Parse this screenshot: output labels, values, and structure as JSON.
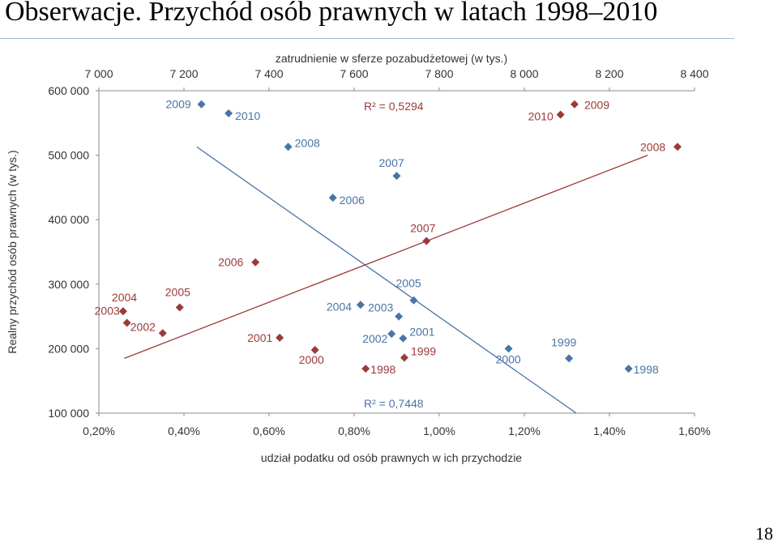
{
  "slide": {
    "title": "Obserwacje. Przychód osób prawnych w latach 1998–2010",
    "page_number": "18"
  },
  "chart_data": {
    "type": "scatter",
    "title": "",
    "x_axis_bottom": {
      "label": "udział podatku od osób prawnych w ich przychodzie",
      "range": [
        0.002,
        0.016
      ],
      "ticks": [
        "0,20%",
        "0,40%",
        "0,60%",
        "0,80%",
        "1,00%",
        "1,20%",
        "1,40%",
        "1,60%"
      ]
    },
    "x_axis_top": {
      "label": "zatrudnienie w sferze pozabudżetowej (w tys.)",
      "range": [
        7000,
        8400
      ],
      "ticks": [
        "7 000",
        "7 200",
        "7 400",
        "7 600",
        "7 800",
        "8 000",
        "8 200",
        "8 400"
      ]
    },
    "y_axis": {
      "label": "Realny przychód osób prawnych (w tys.)",
      "range": [
        100000,
        600000
      ],
      "ticks": [
        "100 000",
        "200 000",
        "300 000",
        "400 000",
        "500 000",
        "600 000"
      ]
    },
    "series": [
      {
        "axis": "bottom",
        "color": "#4a74a6",
        "points": [
          {
            "label": "1998",
            "x": 0.01445,
            "y": 169000
          },
          {
            "label": "1999",
            "x": 0.01305,
            "y": 185000
          },
          {
            "label": "2000",
            "x": 0.01163,
            "y": 200000
          },
          {
            "label": "2001",
            "x": 0.00915,
            "y": 216000
          },
          {
            "label": "2002",
            "x": 0.00888,
            "y": 223000
          },
          {
            "label": "2003",
            "x": 0.00905,
            "y": 250000
          },
          {
            "label": "2004",
            "x": 0.00815,
            "y": 268000
          },
          {
            "label": "2005",
            "x": 0.0094,
            "y": 275000
          },
          {
            "label": "2006",
            "x": 0.0075,
            "y": 434000
          },
          {
            "label": "2007",
            "x": 0.009,
            "y": 468000
          },
          {
            "label": "2008",
            "x": 0.00645,
            "y": 513000
          },
          {
            "label": "2009",
            "x": 0.00441,
            "y": 579000
          },
          {
            "label": "2010",
            "x": 0.00505,
            "y": 565000
          }
        ],
        "trendline": {
          "from": {
            "x": 0.0043,
            "y": 513000
          },
          "to": {
            "x": 0.01322,
            "y": 100000
          }
        },
        "r2": "R² = 0,7448"
      },
      {
        "axis": "top",
        "color": "#9b3a38",
        "points": [
          {
            "label": "1998",
            "x": 7627,
            "y": 169000
          },
          {
            "label": "1999",
            "x": 7718,
            "y": 186000
          },
          {
            "label": "2000",
            "x": 7508,
            "y": 198000
          },
          {
            "label": "2001",
            "x": 7425,
            "y": 217000
          },
          {
            "label": "2002",
            "x": 7150,
            "y": 224000
          },
          {
            "label": "2003",
            "x": 7066,
            "y": 240000
          },
          {
            "label": "2004",
            "x": 7057,
            "y": 258000
          },
          {
            "label": "2005",
            "x": 7190,
            "y": 264000
          },
          {
            "label": "2006",
            "x": 7368,
            "y": 334000
          },
          {
            "label": "2007",
            "x": 7770,
            "y": 367000
          },
          {
            "label": "2008",
            "x": 8360,
            "y": 513000
          },
          {
            "label": "2009",
            "x": 8118,
            "y": 579000
          },
          {
            "label": "2010",
            "x": 8085,
            "y": 563000
          }
        ],
        "trendline": {
          "from": {
            "x": 7060,
            "y": 185000
          },
          "to": {
            "x": 8290,
            "y": 500000
          }
        },
        "r2": "R² = 0,5294"
      }
    ],
    "grid": false,
    "legend": "none"
  }
}
